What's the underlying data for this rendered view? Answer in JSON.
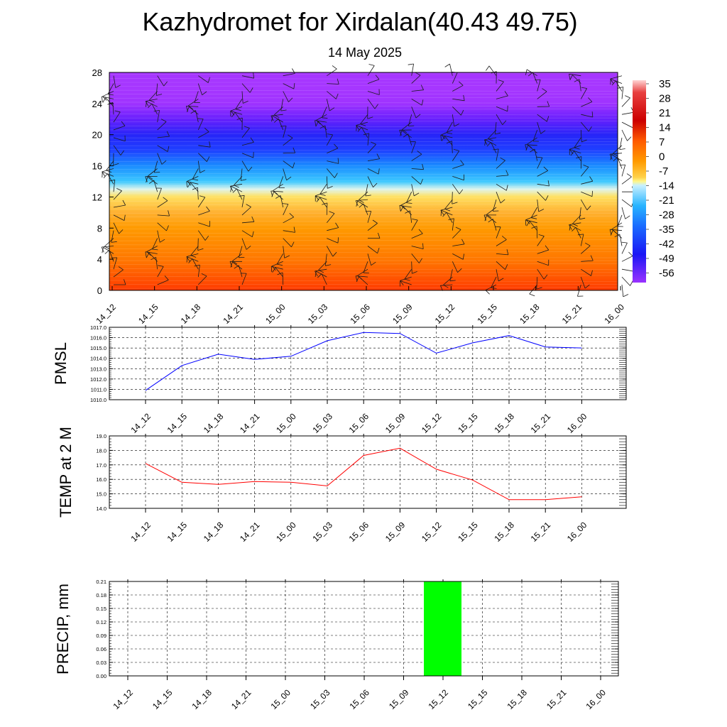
{
  "title": "Kazhydromet for Xirdalan(40.43 49.75)",
  "date": "14 May 2025",
  "time_labels": [
    "14_12",
    "14_15",
    "14_18",
    "14_21",
    "15_00",
    "15_03",
    "15_06",
    "15_09",
    "15_12",
    "15_15",
    "15_18",
    "15_21",
    "16_00"
  ],
  "chart_data": [
    {
      "type": "heatmap",
      "title": "",
      "xlabel": "",
      "ylabel": "",
      "x": [
        "14_12",
        "14_15",
        "14_18",
        "14_21",
        "15_00",
        "15_03",
        "15_06",
        "15_09",
        "15_12",
        "15_15",
        "15_18",
        "15_21",
        "16_00"
      ],
      "ylim": [
        0,
        28
      ],
      "y_ticks": [
        "0",
        "4",
        "8",
        "12",
        "16",
        "20",
        "24",
        "28"
      ],
      "colorbar_labels": [
        "35",
        "28",
        "21",
        "14",
        "7",
        "0",
        "-7",
        "-14",
        "-21",
        "-28",
        "-35",
        "-42",
        "-49",
        "-56"
      ],
      "profile": {
        "heights": [
          0,
          2,
          4,
          6,
          8,
          10,
          12,
          13,
          14,
          16,
          18,
          20,
          22,
          24,
          26,
          28
        ],
        "temperature": [
          20,
          16,
          12,
          9,
          6,
          0,
          -7,
          -14,
          -25,
          -35,
          -45,
          -50,
          -58,
          -65,
          -66,
          -66
        ]
      },
      "overlay": "wind-barbs"
    },
    {
      "type": "line",
      "ylabel": "PMSL",
      "x": [
        "14_12",
        "14_15",
        "14_18",
        "14_21",
        "15_00",
        "15_03",
        "15_06",
        "15_09",
        "15_12",
        "15_15",
        "15_18",
        "15_21",
        "16_00"
      ],
      "y_ticks": [
        "1010.0",
        "1011.0",
        "1012.0",
        "1013.0",
        "1014.0",
        "1015.0",
        "1016.0",
        "1017.0"
      ],
      "ylim": [
        1010,
        1017
      ],
      "series": [
        {
          "values": [
            1010.9,
            1013.3,
            1014.4,
            1013.9,
            1014.2,
            1015.7,
            1016.5,
            1016.4,
            1014.5,
            1015.5,
            1016.2,
            1015.1,
            1015.0
          ],
          "color": "#0000ff"
        }
      ]
    },
    {
      "type": "line",
      "ylabel": "TEMP at 2 M",
      "x": [
        "14_12",
        "14_15",
        "14_18",
        "14_21",
        "15_00",
        "15_03",
        "15_06",
        "15_09",
        "15_12",
        "15_15",
        "15_18",
        "15_21",
        "16_00"
      ],
      "y_ticks": [
        "14.0",
        "15.0",
        "16.0",
        "17.0",
        "18.0",
        "19.0"
      ],
      "ylim": [
        14,
        19
      ],
      "series": [
        {
          "values": [
            17.1,
            15.8,
            15.65,
            15.85,
            15.8,
            15.55,
            17.65,
            18.15,
            16.7,
            15.95,
            14.6,
            14.6,
            14.8
          ],
          "color": "#ff0000"
        }
      ]
    },
    {
      "type": "bar",
      "ylabel": "PRECIP, mm",
      "categories": [
        "14_12",
        "14_15",
        "14_18",
        "14_21",
        "15_00",
        "15_03",
        "15_06",
        "15_09",
        "15_12",
        "15_15",
        "15_18",
        "15_21",
        "16_00"
      ],
      "y_ticks": [
        "0.00",
        "0.03",
        "0.06",
        "0.09",
        "0.12",
        "0.15",
        "0.18",
        "0.21"
      ],
      "ylim": [
        0,
        0.21
      ],
      "values": [
        0,
        0,
        0,
        0,
        0,
        0,
        0,
        0,
        0.21,
        0,
        0,
        0,
        0
      ],
      "color": "#00ff00"
    }
  ]
}
